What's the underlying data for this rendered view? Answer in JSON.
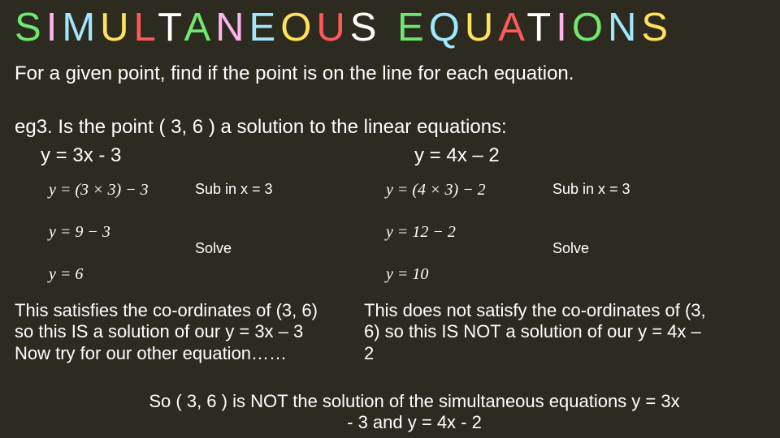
{
  "background_color": "#2d2a1f",
  "title_letters": [
    {
      "ch": "S",
      "color": "#6fe86f"
    },
    {
      "ch": "I",
      "color": "#ffb4f0"
    },
    {
      "ch": "M",
      "color": "#a0e8ff"
    },
    {
      "ch": "U",
      "color": "#ffe25a"
    },
    {
      "ch": "L",
      "color": "#ff5a5a"
    },
    {
      "ch": "T",
      "color": "#ffffff"
    },
    {
      "ch": "A",
      "color": "#6fe86f"
    },
    {
      "ch": "N",
      "color": "#ffb4f0"
    },
    {
      "ch": "E",
      "color": "#a0e8ff"
    },
    {
      "ch": "O",
      "color": "#ffe25a"
    },
    {
      "ch": "U",
      "color": "#ff5a5a"
    },
    {
      "ch": "S",
      "color": "#ffffff"
    },
    {
      "ch": " ",
      "color": "#ffffff"
    },
    {
      "ch": " ",
      "color": "#ffffff"
    },
    {
      "ch": "E",
      "color": "#6fe86f"
    },
    {
      "ch": "Q",
      "color": "#a0e8ff"
    },
    {
      "ch": "U",
      "color": "#ffe25a"
    },
    {
      "ch": "A",
      "color": "#ff5a5a"
    },
    {
      "ch": "T",
      "color": "#ffffff"
    },
    {
      "ch": "I",
      "color": "#ffb4f0"
    },
    {
      "ch": "O",
      "color": "#6fe86f"
    },
    {
      "ch": "N",
      "color": "#a0e8ff"
    },
    {
      "ch": "S",
      "color": "#ffe25a"
    }
  ],
  "title_fontsize": 49,
  "subtitle": "For a given point, find if the point is on the line for each equation.",
  "eg": "eg3.  Is the point ( 3, 6 ) a solution to the linear equations:",
  "equation_left": "y = 3x - 3",
  "equation_right": "y =  4x – 2",
  "left_work": {
    "step1": "y = (3 × 3) − 3",
    "step2": "y = 9 − 3",
    "step3": "y = 6",
    "annot1": "Sub in x = 3",
    "annot2": "Solve"
  },
  "right_work": {
    "step1": "y = (4 × 3) − 2",
    "step2": "y = 12 − 2",
    "step3": "y = 10",
    "annot1": "Sub in x = 3",
    "annot2": "Solve"
  },
  "conclusion_left": "This satisfies the co-ordinates of (3, 6) so this IS a solution of our y = 3x – 3\nNow try for our other equation……",
  "conclusion_right": "This does not satisfy the co-ordinates of (3, 6) so this IS NOT a solution of our y = 4x – 2",
  "final": "So ( 3, 6 ) is NOT the solution of the simultaneous equations  y = 3x - 3  and  y = 4x - 2",
  "annot_color": "#ffffff",
  "text_color": "#ffffff",
  "work_font": "Cambria Math"
}
